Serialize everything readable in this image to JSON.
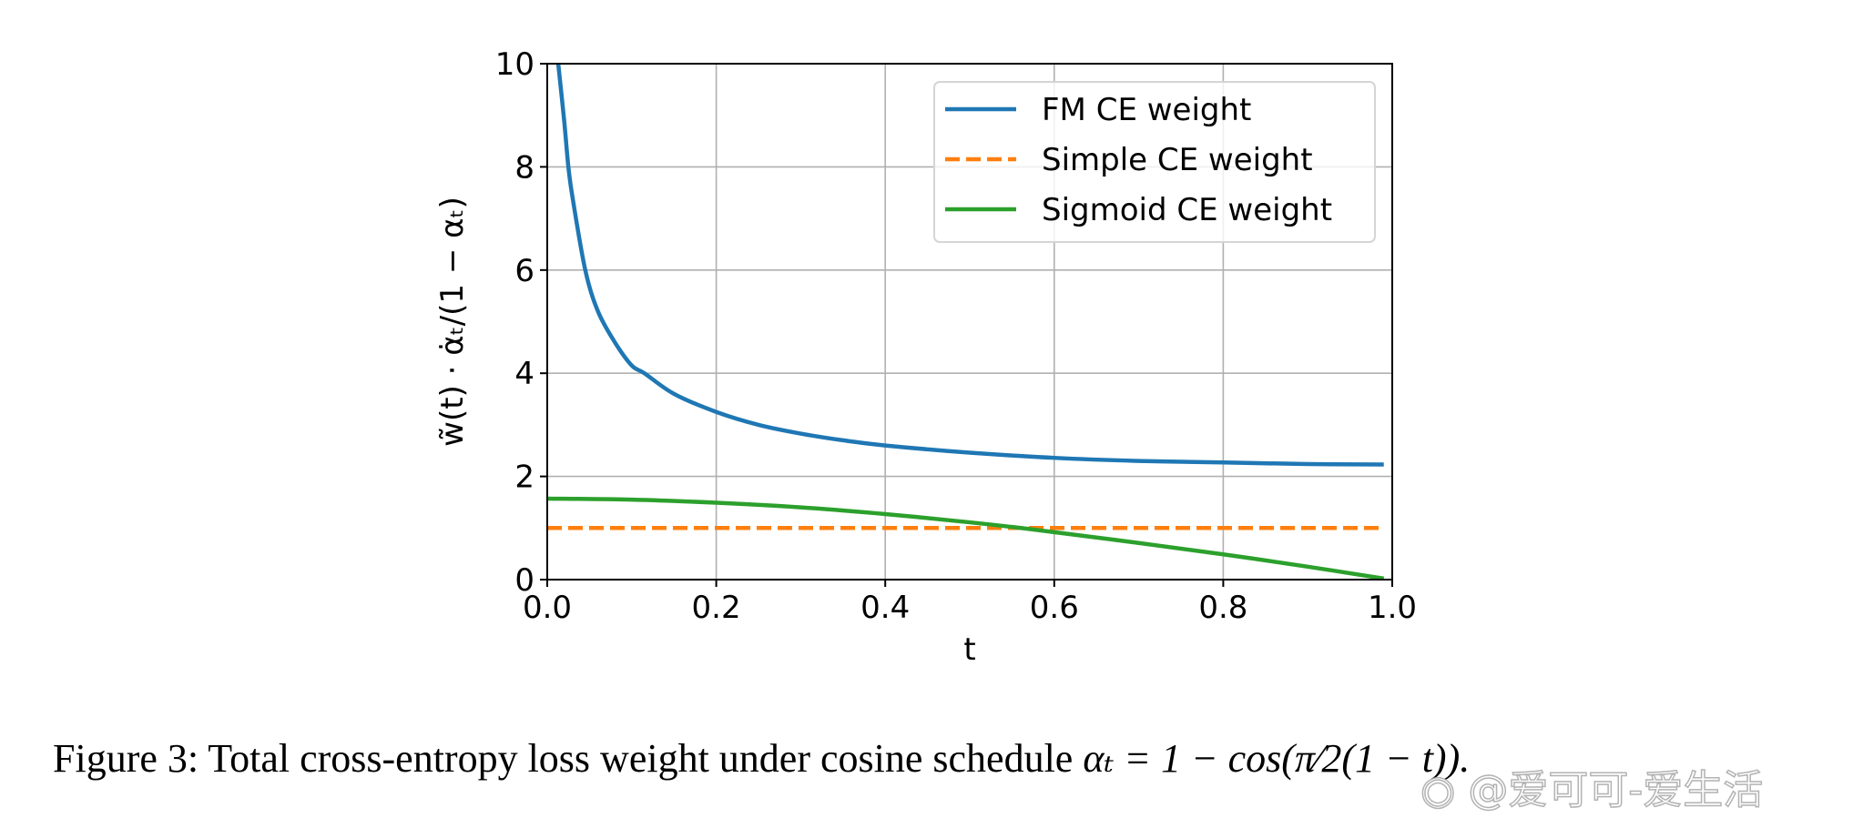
{
  "chart_data": {
    "type": "line",
    "title": "",
    "xlabel": "t",
    "ylabel": "w̃(t) · α̇ₜ/(1 − αₜ)",
    "xlim": [
      0.0,
      1.0
    ],
    "ylim": [
      0,
      10
    ],
    "xticks": [
      "0.0",
      "0.2",
      "0.4",
      "0.6",
      "0.8",
      "1.0"
    ],
    "yticks": [
      "0",
      "2",
      "4",
      "6",
      "8",
      "10"
    ],
    "grid": true,
    "legend_position": "top-right",
    "series": [
      {
        "name": "FM CE weight",
        "color": "#1f77b4",
        "style": "solid",
        "x": [
          0.013,
          0.02,
          0.025,
          0.03,
          0.045,
          0.06,
          0.08,
          0.1,
          0.115,
          0.15,
          0.2,
          0.25,
          0.3,
          0.35,
          0.4,
          0.5,
          0.6,
          0.7,
          0.8,
          0.9,
          0.99
        ],
        "y": [
          10.0,
          8.9,
          8.0,
          7.4,
          6.0,
          5.2,
          4.6,
          4.15,
          4.0,
          3.6,
          3.25,
          3.0,
          2.83,
          2.7,
          2.6,
          2.46,
          2.36,
          2.3,
          2.27,
          2.24,
          2.23
        ]
      },
      {
        "name": "Simple CE weight",
        "color": "#ff7f0e",
        "style": "dashed",
        "x": [
          0.0,
          0.99
        ],
        "y": [
          1.0,
          1.0
        ]
      },
      {
        "name": "Sigmoid CE weight",
        "color": "#2ca02c",
        "style": "solid",
        "x": [
          0.0,
          0.1,
          0.2,
          0.3,
          0.4,
          0.5,
          0.55,
          0.6,
          0.7,
          0.8,
          0.9,
          0.99
        ],
        "y": [
          1.57,
          1.55,
          1.49,
          1.4,
          1.27,
          1.11,
          1.02,
          0.92,
          0.71,
          0.49,
          0.25,
          0.02
        ]
      }
    ]
  },
  "caption": {
    "prefix": "Figure 3: Total cross-entropy loss weight under cosine schedule ",
    "formula": "αₜ = 1 − cos(π⁄2(1 − t))."
  },
  "watermark": {
    "text": "@爱可可-爱生活",
    "icon": "weibo-icon"
  }
}
